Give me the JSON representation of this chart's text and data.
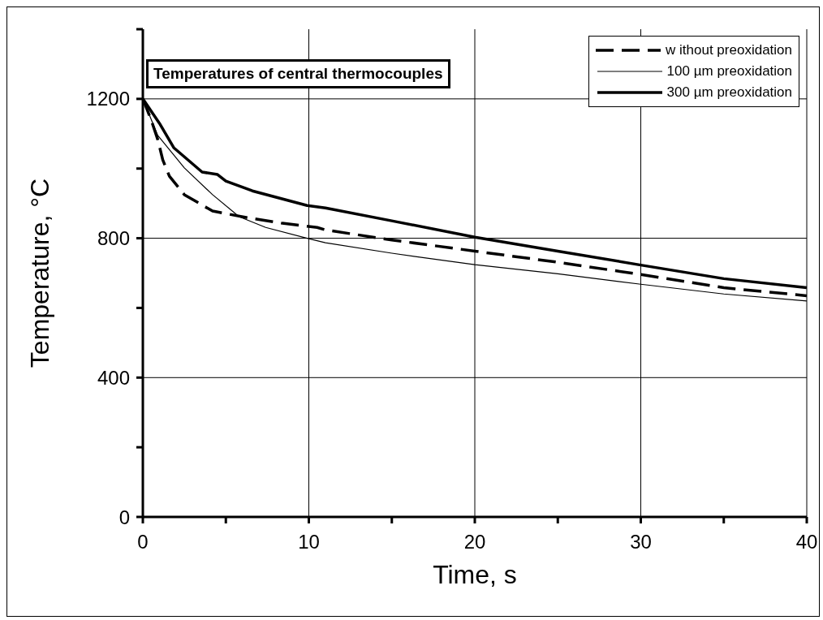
{
  "chart_data": {
    "type": "line",
    "title": "Temperatures of central thermocouples",
    "xlabel": "Time, s",
    "ylabel": "Temperature, °C",
    "xlim": [
      0,
      40
    ],
    "ylim": [
      0,
      1400
    ],
    "xticks": [
      0,
      {
        "value": 5,
        "label": null
      },
      10,
      {
        "value": 15,
        "label": null
      },
      20,
      {
        "value": 25,
        "label": null
      },
      30,
      {
        "value": 35,
        "label": null
      },
      40
    ],
    "yticks": [
      0,
      {
        "value": 200,
        "label": null
      },
      400,
      {
        "value": 600,
        "label": null
      },
      800,
      {
        "value": 1000,
        "label": null
      },
      1200,
      {
        "value": 1400,
        "label": null
      }
    ],
    "grid": true,
    "legend": "top right",
    "marker": "none",
    "series": [
      {
        "name": "w ithout preoxidation",
        "color": "#000000",
        "line_style": "dashed",
        "x": [
          0,
          0.5,
          0.9,
          1.2,
          1.6,
          2.5,
          4.2,
          6.3,
          8.4,
          10.5,
          11,
          15,
          20,
          25,
          30,
          35,
          40
        ],
        "values": [
          1200,
          1140,
          1083,
          1025,
          978,
          925,
          878,
          859,
          843,
          831,
          824,
          795,
          763,
          731,
          696,
          658,
          635
        ]
      },
      {
        "name": "100 µm preoxidation",
        "color": "#000000",
        "line_style": "solid",
        "x": [
          0,
          0.9,
          2.5,
          4.2,
          5.8,
          7.4,
          9.9,
          11,
          15,
          20,
          25,
          30,
          35,
          40
        ],
        "values": [
          1200,
          1095,
          1002,
          925,
          862,
          831,
          800,
          787,
          757,
          724,
          698,
          668,
          640,
          620
        ]
      },
      {
        "name": "300 µm preoxidation",
        "color": "#000000",
        "line_style": "solid",
        "x": [
          0,
          1,
          1.86,
          3.57,
          4.5,
          5,
          6.6,
          9.9,
          11,
          15,
          20,
          25,
          30,
          35,
          40
        ],
        "values": [
          1200,
          1130,
          1060,
          990,
          983,
          964,
          936,
          894,
          887,
          850,
          803,
          763,
          723,
          684,
          658
        ]
      }
    ]
  }
}
